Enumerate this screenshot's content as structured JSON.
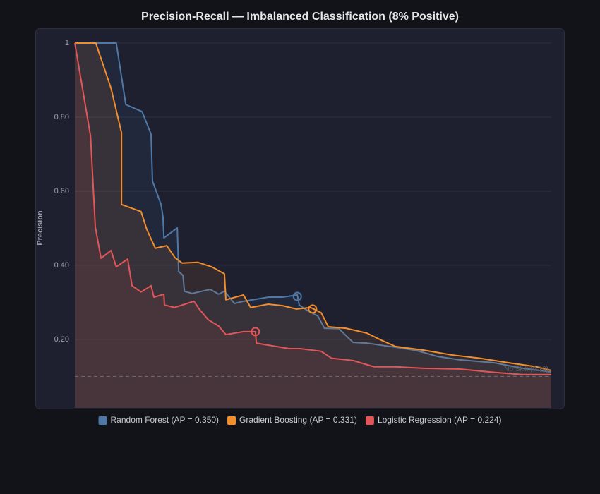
{
  "chart_data": {
    "type": "line",
    "title": "Precision-Recall — Imbalanced Classification (8% Positive)",
    "ylabel": "Precision",
    "xlim": [
      0,
      1
    ],
    "ylim": [
      0.015,
      1.04
    ],
    "yticks": [
      1,
      {
        "value": 0.8,
        "label": "0.80"
      },
      {
        "value": 0.6,
        "label": "0.60"
      },
      {
        "value": 0.4,
        "label": "0.40"
      },
      {
        "value": 0.2,
        "label": "0.20"
      }
    ],
    "grid": true,
    "legend": "bottom",
    "baseline": {
      "value": 0.1,
      "label": "No Skill (0.10)"
    },
    "series": [
      {
        "name": "Random Forest (AP = 0.350)",
        "color": "#4e79a7",
        "x": [
          0,
          0.087,
          0.107,
          0.141,
          0.16,
          0.163,
          0.181,
          0.185,
          0.187,
          0.215,
          0.218,
          0.227,
          0.23,
          0.246,
          0.284,
          0.302,
          0.314,
          0.335,
          0.354,
          0.388,
          0.406,
          0.436,
          0.467,
          0.471,
          0.483,
          0.51,
          0.524,
          0.554,
          0.584,
          0.613,
          0.65,
          0.673,
          0.717,
          0.761,
          0.806,
          0.88,
          0.939,
          1.0
        ],
        "values": [
          1.0,
          1.0,
          0.834,
          0.815,
          0.754,
          0.627,
          0.564,
          0.531,
          0.474,
          0.501,
          0.383,
          0.373,
          0.33,
          0.324,
          0.335,
          0.322,
          0.33,
          0.297,
          0.303,
          0.31,
          0.314,
          0.314,
          0.32,
          0.293,
          0.282,
          0.263,
          0.23,
          0.229,
          0.192,
          0.19,
          0.183,
          0.179,
          0.17,
          0.154,
          0.145,
          0.137,
          0.122,
          0.112
        ],
        "marker": {
          "x": 0.467,
          "y": 0.316
        }
      },
      {
        "name": "Gradient Boosting (AP = 0.331)",
        "color": "#f28e2b",
        "x": [
          0,
          0.044,
          0.076,
          0.098,
          0.098,
          0.139,
          0.151,
          0.169,
          0.193,
          0.21,
          0.225,
          0.258,
          0.287,
          0.314,
          0.317,
          0.354,
          0.369,
          0.406,
          0.436,
          0.465,
          0.495,
          0.517,
          0.532,
          0.569,
          0.613,
          0.643,
          0.673,
          0.732,
          0.791,
          0.85,
          0.91,
          0.969,
          1.0
        ],
        "values": [
          1.0,
          1.0,
          0.878,
          0.758,
          0.564,
          0.545,
          0.497,
          0.446,
          0.453,
          0.421,
          0.406,
          0.408,
          0.396,
          0.377,
          0.307,
          0.32,
          0.286,
          0.295,
          0.291,
          0.282,
          0.286,
          0.272,
          0.234,
          0.23,
          0.217,
          0.198,
          0.181,
          0.171,
          0.158,
          0.149,
          0.137,
          0.126,
          0.116
        ],
        "marker": {
          "x": 0.499,
          "y": 0.282
        }
      },
      {
        "name": "Logistic Regression (AP = 0.224)",
        "color": "#e15759",
        "x": [
          0,
          0.033,
          0.043,
          0.055,
          0.076,
          0.087,
          0.111,
          0.12,
          0.139,
          0.16,
          0.166,
          0.187,
          0.188,
          0.209,
          0.25,
          0.261,
          0.28,
          0.302,
          0.317,
          0.354,
          0.379,
          0.381,
          0.413,
          0.45,
          0.473,
          0.517,
          0.539,
          0.584,
          0.628,
          0.673,
          0.732,
          0.806,
          0.88,
          0.939,
          1.0
        ],
        "values": [
          1.0,
          0.749,
          0.503,
          0.419,
          0.44,
          0.396,
          0.417,
          0.345,
          0.328,
          0.345,
          0.314,
          0.322,
          0.293,
          0.286,
          0.303,
          0.282,
          0.253,
          0.236,
          0.213,
          0.221,
          0.221,
          0.19,
          0.183,
          0.175,
          0.175,
          0.168,
          0.149,
          0.143,
          0.126,
          0.126,
          0.122,
          0.12,
          0.111,
          0.105,
          0.105
        ],
        "marker": {
          "x": 0.379,
          "y": 0.221
        }
      }
    ]
  }
}
